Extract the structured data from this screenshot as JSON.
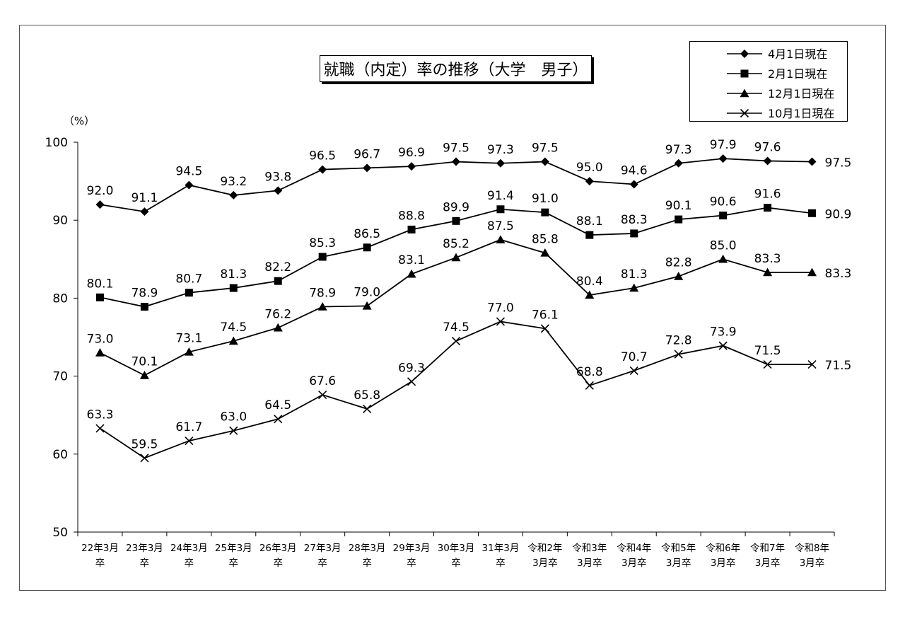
{
  "chart_data": {
    "type": "line",
    "title": "就職（内定）率の推移（大学　男子）",
    "ylabel": "（%）",
    "xlabel": "",
    "ylim": [
      50,
      100
    ],
    "yticks": [
      50,
      60,
      70,
      80,
      90,
      100
    ],
    "grid": false,
    "legend_position": "top-right",
    "categories": [
      [
        "22年3月",
        "卒"
      ],
      [
        "23年3月",
        "卒"
      ],
      [
        "24年3月",
        "卒"
      ],
      [
        "25年3月",
        "卒"
      ],
      [
        "26年3月",
        "卒"
      ],
      [
        "27年3月",
        "卒"
      ],
      [
        "28年3月",
        "卒"
      ],
      [
        "29年3月",
        "卒"
      ],
      [
        "30年3月",
        "卒"
      ],
      [
        "31年3月",
        "卒"
      ],
      [
        "令和2年",
        "3月卒"
      ],
      [
        "令和3年",
        "3月卒"
      ],
      [
        "令和4年",
        "3月卒"
      ],
      [
        "令和5年",
        "3月卒"
      ],
      [
        "令和6年",
        "3月卒"
      ],
      [
        "令和7年",
        "3月卒"
      ],
      [
        "令和8年",
        "3月卒"
      ]
    ],
    "series": [
      {
        "name": "4月1日現在",
        "marker": "diamond",
        "values": [
          92.0,
          91.1,
          94.5,
          93.2,
          93.8,
          96.5,
          96.7,
          96.9,
          97.5,
          97.3,
          97.5,
          95.0,
          94.6,
          97.3,
          97.9,
          97.6,
          97.5
        ]
      },
      {
        "name": "2月1日現在",
        "marker": "square",
        "values": [
          80.1,
          78.9,
          80.7,
          81.3,
          82.2,
          85.3,
          86.5,
          88.8,
          89.9,
          91.4,
          91.0,
          88.1,
          88.3,
          90.1,
          90.6,
          91.6,
          90.9
        ]
      },
      {
        "name": "12月1日現在",
        "marker": "triangle",
        "values": [
          73.0,
          70.1,
          73.1,
          74.5,
          76.2,
          78.9,
          79.0,
          83.1,
          85.2,
          87.5,
          85.8,
          80.4,
          81.3,
          82.8,
          85.0,
          83.3,
          83.3
        ]
      },
      {
        "name": "10月1日現在",
        "marker": "cross",
        "values": [
          63.3,
          59.5,
          61.7,
          63.0,
          64.5,
          67.6,
          65.8,
          69.3,
          74.5,
          77.0,
          76.1,
          68.8,
          70.7,
          72.8,
          73.9,
          71.5,
          71.5
        ]
      }
    ],
    "line_color": "#000000"
  }
}
